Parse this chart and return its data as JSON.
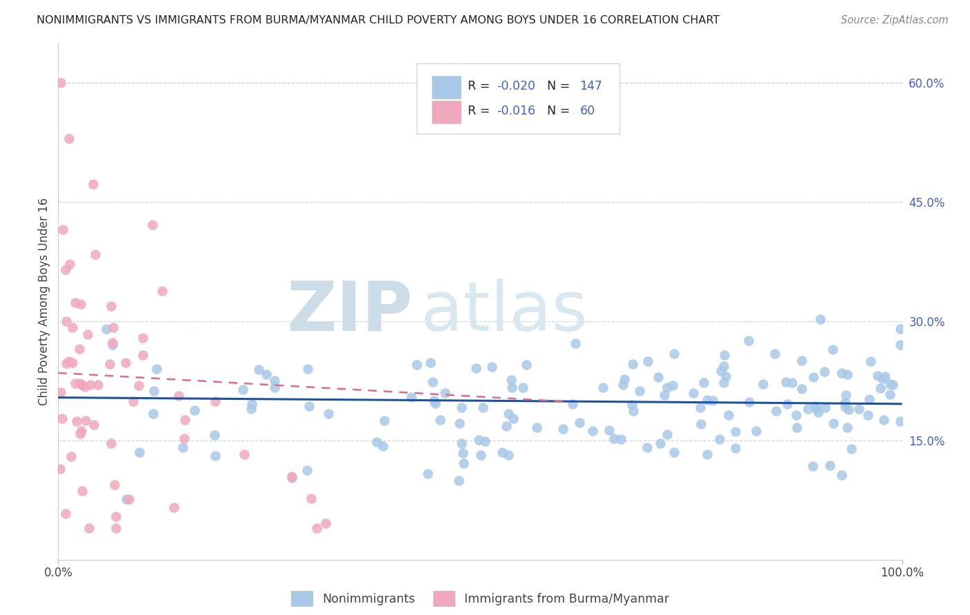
{
  "title": "NONIMMIGRANTS VS IMMIGRANTS FROM BURMA/MYANMAR CHILD POVERTY AMONG BOYS UNDER 16 CORRELATION CHART",
  "source": "Source: ZipAtlas.com",
  "ylabel": "Child Poverty Among Boys Under 16",
  "xlim": [
    0,
    1.0
  ],
  "ylim": [
    0,
    0.65
  ],
  "ytick_labels_right": [
    "60.0%",
    "45.0%",
    "30.0%",
    "15.0%"
  ],
  "ytick_positions_right": [
    0.6,
    0.45,
    0.3,
    0.15
  ],
  "R_nonimm": -0.02,
  "N_nonimm": 147,
  "R_imm": -0.016,
  "N_imm": 60,
  "nonimm_color": "#a8c8e8",
  "imm_color": "#f0a8bc",
  "trend_nonimm_color": "#1a52a8",
  "trend_imm_color": "#e06888",
  "watermark_zip": "ZIP",
  "watermark_atlas": "atlas",
  "watermark_color": "#dce8f0",
  "background_color": "#ffffff",
  "grid_color": "#c8d8e4",
  "legend_num_color": "#4060c8",
  "legend_text_color": "#222222"
}
